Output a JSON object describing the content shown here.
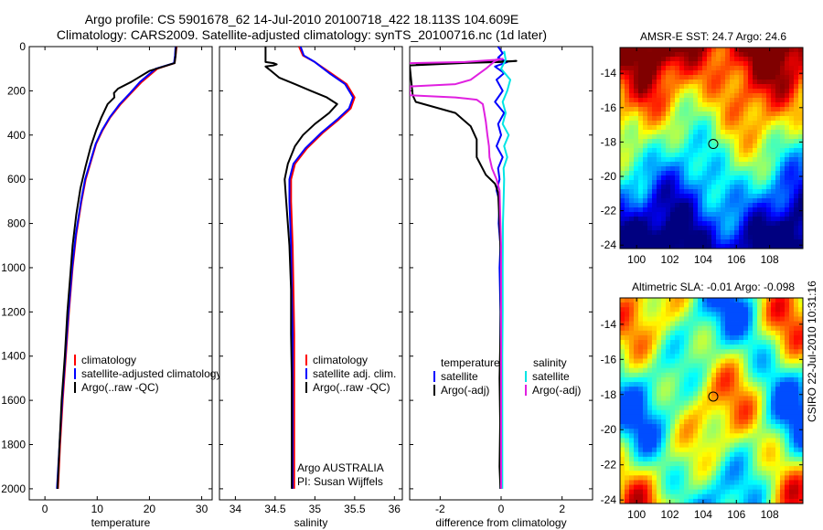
{
  "title_line1": "Argo profile: CS 5901678_62 14-Jul-2010 20100718_422 18.113S 104.609E",
  "title_line2": "Climatology: CARS2009. Satellite-adjusted climatology: synTS_20100716.nc (1d later)",
  "side_label": "CSIRO 22-Jul-2010 10:31:16",
  "colors": {
    "red": "#ff0000",
    "blue": "#0000ff",
    "black": "#000000",
    "cyan": "#00e5e5",
    "magenta": "#e020e0"
  },
  "chart_data": [
    {
      "type": "line",
      "id": "temperature",
      "xlabel": "temperature",
      "xlim": [
        -3,
        32
      ],
      "ylim": [
        2050,
        0
      ],
      "xticks": [
        0,
        10,
        20,
        30
      ],
      "yticks": [
        0,
        200,
        400,
        600,
        800,
        1000,
        1200,
        1400,
        1600,
        1800,
        2000
      ],
      "legend": [
        "climatology",
        "satellite-adjusted climatology",
        "Argo(..raw -QC)"
      ],
      "series": [
        {
          "name": "climatology",
          "color": "red",
          "points": [
            [
              25.2,
              0
            ],
            [
              25.0,
              40
            ],
            [
              24.8,
              75
            ],
            [
              21.5,
              100
            ],
            [
              18.5,
              160
            ],
            [
              16.5,
              210
            ],
            [
              14.5,
              260
            ],
            [
              12.5,
              320
            ],
            [
              11.0,
              380
            ],
            [
              9.8,
              440
            ],
            [
              8.8,
              520
            ],
            [
              7.8,
              600
            ],
            [
              7.0,
              700
            ],
            [
              6.0,
              850
            ],
            [
              5.3,
              1000
            ],
            [
              4.6,
              1200
            ],
            [
              4.0,
              1400
            ],
            [
              3.4,
              1600
            ],
            [
              2.9,
              1800
            ],
            [
              2.5,
              2000
            ]
          ]
        },
        {
          "name": "satellite-adjusted climatology",
          "color": "blue",
          "points": [
            [
              25.0,
              0
            ],
            [
              24.9,
              40
            ],
            [
              24.7,
              75
            ],
            [
              21.2,
              100
            ],
            [
              18.2,
              160
            ],
            [
              16.3,
              210
            ],
            [
              14.3,
              260
            ],
            [
              12.4,
              320
            ],
            [
              10.9,
              380
            ],
            [
              9.7,
              440
            ],
            [
              8.7,
              520
            ],
            [
              7.7,
              600
            ],
            [
              6.9,
              700
            ],
            [
              5.9,
              850
            ],
            [
              5.2,
              1000
            ],
            [
              4.5,
              1200
            ],
            [
              3.9,
              1400
            ],
            [
              3.3,
              1600
            ],
            [
              2.8,
              1800
            ],
            [
              2.3,
              2000
            ]
          ]
        },
        {
          "name": "Argo(..raw -QC)",
          "color": "black",
          "points": [
            [
              25.1,
              0
            ],
            [
              25.0,
              40
            ],
            [
              24.8,
              75
            ],
            [
              20.0,
              110
            ],
            [
              16.5,
              160
            ],
            [
              14.0,
              190
            ],
            [
              13.2,
              210
            ],
            [
              13.3,
              230
            ],
            [
              12.0,
              260
            ],
            [
              10.8,
              320
            ],
            [
              9.8,
              380
            ],
            [
              8.8,
              450
            ],
            [
              7.8,
              540
            ],
            [
              6.8,
              640
            ],
            [
              6.0,
              760
            ],
            [
              5.3,
              900
            ],
            [
              4.8,
              1050
            ],
            [
              4.3,
              1200
            ],
            [
              3.8,
              1400
            ],
            [
              3.2,
              1600
            ],
            [
              2.8,
              1800
            ],
            [
              2.4,
              2000
            ]
          ]
        }
      ]
    },
    {
      "type": "line",
      "id": "salinity",
      "xlabel": "salinity",
      "xlim": [
        33.8,
        36.1
      ],
      "ylim": [
        2050,
        0
      ],
      "xticks": [
        34,
        34.5,
        35,
        35.5,
        36
      ],
      "legend": [
        "climatology",
        "satellite adj. clim.",
        "Argo(..raw -QC)"
      ],
      "annotation": [
        "Argo AUSTRALIA",
        "PI: Susan Wijffels"
      ],
      "series": [
        {
          "name": "climatology",
          "color": "red",
          "points": [
            [
              34.8,
              0
            ],
            [
              34.85,
              40
            ],
            [
              35.0,
              70
            ],
            [
              35.2,
              120
            ],
            [
              35.4,
              170
            ],
            [
              35.5,
              230
            ],
            [
              35.45,
              280
            ],
            [
              35.3,
              330
            ],
            [
              35.1,
              390
            ],
            [
              34.9,
              460
            ],
            [
              34.75,
              530
            ],
            [
              34.7,
              600
            ],
            [
              34.7,
              700
            ],
            [
              34.72,
              900
            ],
            [
              34.73,
              1100
            ],
            [
              34.74,
              1300
            ],
            [
              34.74,
              1500
            ],
            [
              34.74,
              1700
            ],
            [
              34.74,
              1900
            ],
            [
              34.74,
              2000
            ]
          ]
        },
        {
          "name": "satellite adj. clim.",
          "color": "blue",
          "points": [
            [
              34.82,
              0
            ],
            [
              34.86,
              40
            ],
            [
              35.0,
              70
            ],
            [
              35.18,
              120
            ],
            [
              35.38,
              170
            ],
            [
              35.48,
              230
            ],
            [
              35.43,
              280
            ],
            [
              35.28,
              330
            ],
            [
              35.08,
              390
            ],
            [
              34.88,
              460
            ],
            [
              34.73,
              530
            ],
            [
              34.68,
              600
            ],
            [
              34.68,
              700
            ],
            [
              34.7,
              900
            ],
            [
              34.71,
              1100
            ],
            [
              34.72,
              1300
            ],
            [
              34.72,
              1500
            ],
            [
              34.72,
              1700
            ],
            [
              34.72,
              1900
            ],
            [
              34.72,
              2000
            ]
          ]
        },
        {
          "name": "Argo(..raw -QC)",
          "color": "black",
          "points": [
            [
              34.38,
              0
            ],
            [
              34.38,
              50
            ],
            [
              34.38,
              70
            ],
            [
              34.48,
              75
            ],
            [
              34.52,
              80
            ],
            [
              34.48,
              85
            ],
            [
              34.38,
              90
            ],
            [
              34.45,
              110
            ],
            [
              34.55,
              140
            ],
            [
              34.75,
              170
            ],
            [
              34.95,
              200
            ],
            [
              35.15,
              230
            ],
            [
              35.28,
              260
            ],
            [
              35.18,
              300
            ],
            [
              35.0,
              350
            ],
            [
              34.85,
              400
            ],
            [
              34.75,
              450
            ],
            [
              34.66,
              530
            ],
            [
              34.62,
              600
            ],
            [
              34.64,
              700
            ],
            [
              34.68,
              900
            ],
            [
              34.7,
              1100
            ],
            [
              34.7,
              1300
            ],
            [
              34.71,
              1500
            ],
            [
              34.71,
              1700
            ],
            [
              34.71,
              1900
            ],
            [
              34.71,
              2000
            ]
          ]
        }
      ]
    },
    {
      "type": "line",
      "id": "difference",
      "xlabel": "difference from climatology",
      "xlim": [
        -3,
        3
      ],
      "ylim": [
        2050,
        0
      ],
      "xticks": [
        -2,
        0,
        2
      ],
      "legend_temperature": [
        "temperature",
        "satellite",
        "Argo(-adj)"
      ],
      "legend_salinity": [
        "salinity",
        "satellite",
        "Argo(-adj)"
      ],
      "series": [
        {
          "name": "temperature satellite",
          "color": "blue",
          "points": [
            [
              -0.1,
              0
            ],
            [
              0.05,
              30
            ],
            [
              -0.1,
              50
            ],
            [
              0.2,
              70
            ],
            [
              -0.2,
              90
            ],
            [
              0.1,
              120
            ],
            [
              -0.15,
              150
            ],
            [
              0.05,
              200
            ],
            [
              -0.2,
              250
            ],
            [
              0.1,
              300
            ],
            [
              -0.1,
              350
            ],
            [
              0.0,
              400
            ],
            [
              -0.15,
              450
            ],
            [
              0.05,
              500
            ],
            [
              -0.1,
              550
            ],
            [
              -0.05,
              600
            ],
            [
              -0.15,
              650
            ],
            [
              -0.05,
              700
            ],
            [
              -0.08,
              800
            ],
            [
              -0.02,
              900
            ],
            [
              -0.05,
              1000
            ],
            [
              -0.02,
              1200
            ],
            [
              -0.03,
              1400
            ],
            [
              -0.02,
              1600
            ],
            [
              -0.02,
              1800
            ],
            [
              -0.02,
              2000
            ]
          ]
        },
        {
          "name": "temperature Argo(-adj)",
          "color": "black",
          "points": [
            [
              -2.8,
              80
            ],
            [
              -1.5,
              75
            ],
            [
              0.0,
              70
            ],
            [
              0.5,
              65
            ],
            [
              -0.5,
              70
            ],
            [
              -3.0,
              85
            ],
            [
              -2.9,
              220
            ],
            [
              -2.8,
              250
            ],
            [
              -1.5,
              300
            ],
            [
              -1.0,
              360
            ],
            [
              -0.8,
              420
            ],
            [
              -0.8,
              500
            ],
            [
              -0.5,
              580
            ],
            [
              -0.2,
              620
            ],
            [
              -0.1,
              660
            ],
            [
              -0.05,
              800
            ],
            [
              0.0,
              1000
            ],
            [
              -0.02,
              1300
            ],
            [
              -0.05,
              1500
            ],
            [
              -0.03,
              1700
            ],
            [
              -0.05,
              1900
            ],
            [
              -0.02,
              2000
            ]
          ]
        },
        {
          "name": "salinity satellite",
          "color": "cyan",
          "points": [
            [
              0.1,
              20
            ],
            [
              0.15,
              60
            ],
            [
              0.0,
              100
            ],
            [
              0.3,
              150
            ],
            [
              0.2,
              200
            ],
            [
              0.05,
              250
            ],
            [
              0.15,
              300
            ],
            [
              0.05,
              350
            ],
            [
              0.25,
              400
            ],
            [
              0.1,
              450
            ],
            [
              0.2,
              500
            ],
            [
              0.08,
              550
            ],
            [
              0.1,
              600
            ],
            [
              0.08,
              700
            ],
            [
              0.06,
              800
            ],
            [
              0.05,
              1000
            ],
            [
              0.05,
              1200
            ],
            [
              0.04,
              1400
            ],
            [
              0.04,
              1600
            ],
            [
              0.04,
              1800
            ],
            [
              0.04,
              2000
            ]
          ]
        },
        {
          "name": "salinity Argo(-adj)",
          "color": "magenta",
          "points": [
            [
              -3.0,
              75
            ],
            [
              -1.2,
              70
            ],
            [
              -0.2,
              60
            ],
            [
              0.05,
              55
            ],
            [
              -0.2,
              65
            ],
            [
              -0.5,
              100
            ],
            [
              -1.0,
              150
            ],
            [
              -1.5,
              170
            ],
            [
              -3.0,
              180
            ],
            [
              -3.0,
              220
            ],
            [
              -1.5,
              230
            ],
            [
              -0.8,
              240
            ],
            [
              -0.6,
              260
            ],
            [
              -0.55,
              300
            ],
            [
              -0.5,
              340
            ],
            [
              -0.45,
              400
            ],
            [
              -0.4,
              450
            ],
            [
              -0.38,
              500
            ],
            [
              -0.3,
              550
            ],
            [
              -0.15,
              600
            ],
            [
              -0.05,
              650
            ],
            [
              -0.02,
              800
            ],
            [
              0.0,
              900
            ],
            [
              0.0,
              1000
            ],
            [
              0.0,
              1500
            ],
            [
              0.0,
              2000
            ]
          ]
        }
      ]
    },
    {
      "type": "heatmap",
      "id": "sst_map",
      "title": "AMSR-E SST: 24.7 Argo: 24.6",
      "xlim": [
        99,
        110
      ],
      "ylim": [
        -24.2,
        -12.5
      ],
      "xticks": [
        100,
        102,
        104,
        106,
        108
      ],
      "yticks": [
        -14,
        -16,
        -18,
        -20,
        -22,
        -24
      ],
      "marker": {
        "x": 104.609,
        "y": -18.113
      }
    },
    {
      "type": "heatmap",
      "id": "sla_map",
      "title": "Altimetric SLA: -0.01 Argo: -0.098",
      "xlim": [
        99,
        110
      ],
      "ylim": [
        -24.2,
        -12.5
      ],
      "xticks": [
        100,
        102,
        104,
        106,
        108
      ],
      "yticks": [
        -14,
        -16,
        -18,
        -20,
        -22,
        -24
      ],
      "marker": {
        "x": 104.609,
        "y": -18.113
      }
    }
  ]
}
